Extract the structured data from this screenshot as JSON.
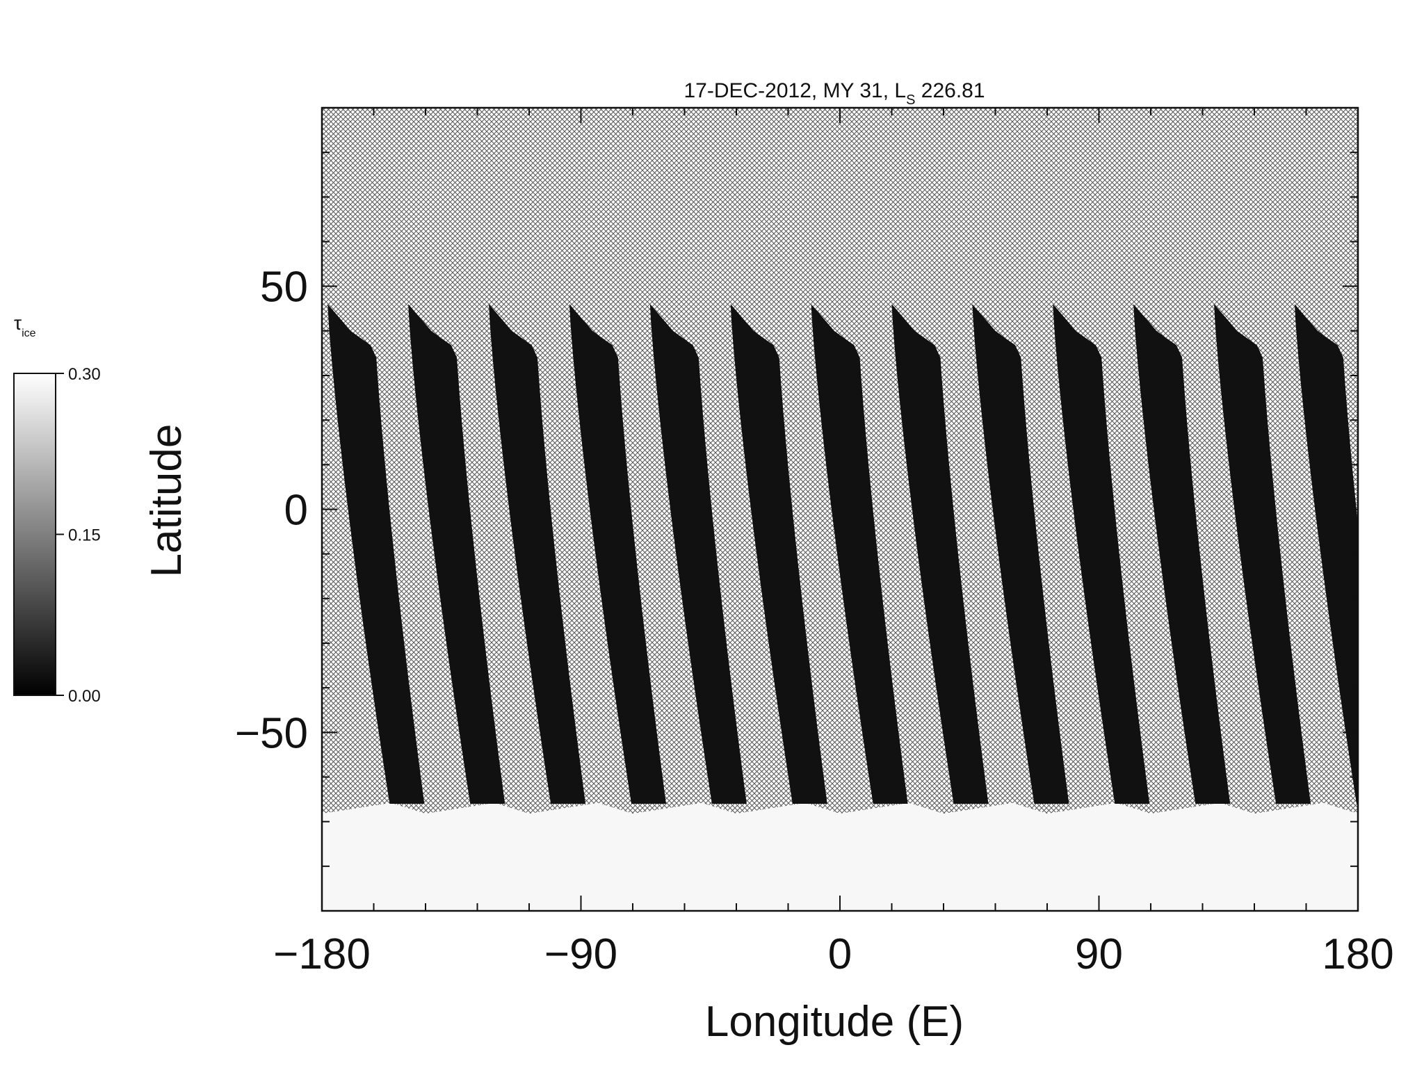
{
  "chart_data": {
    "type": "heatmap",
    "title": "17-DEC-2012, MY 31,  L",
    "title_subscript": "S",
    "title_suffix": " 226.81",
    "xlabel": "Longitude (E)",
    "ylabel": "Latitude",
    "xlim": [
      -180,
      180
    ],
    "ylim": [
      -90,
      90
    ],
    "xticks": [
      -180,
      -90,
      0,
      90,
      180
    ],
    "yticks": [
      -50,
      0,
      50
    ],
    "x_minor_step": 18,
    "y_minor_step": 10,
    "background_pattern": "crosshatch (no data)",
    "colorbar": {
      "label": "τ",
      "label_subscript": "ice",
      "range": [
        0.0,
        0.3
      ],
      "ticks": [
        "0.00",
        "0.15",
        "0.30"
      ],
      "colormap": "grayscale black-to-white"
    },
    "swaths": {
      "count": 13,
      "start_lon": [
        -178,
        -150,
        -122,
        -94,
        -66,
        -38,
        -10,
        18,
        46,
        74,
        102,
        130,
        158
      ],
      "top_lat": 46,
      "bottom_lat": -68,
      "value": 0.02
    },
    "south_polar_region": {
      "lat_range": [
        -90,
        -67
      ],
      "value": 0.29
    },
    "colors": {
      "swath": "#141414",
      "polar": "#f4f4f4",
      "hatch": "#555555",
      "axis": "#111111"
    }
  }
}
